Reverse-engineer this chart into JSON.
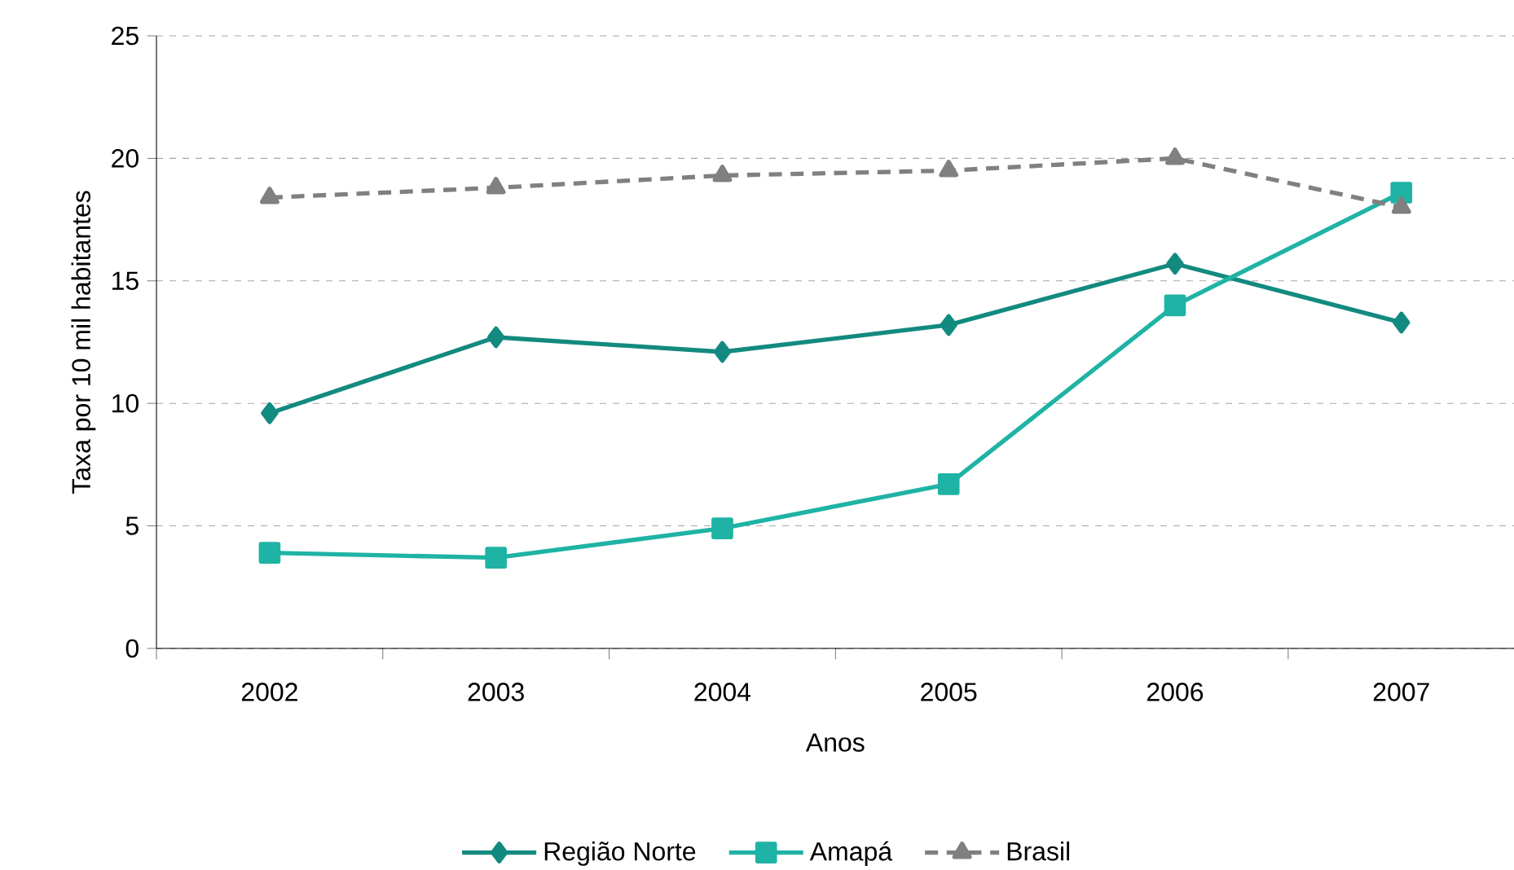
{
  "chart_data": {
    "type": "line",
    "xlabel": "Anos",
    "ylabel": "Taxa por 10 mil habitantes",
    "categories": [
      "2002",
      "2003",
      "2004",
      "2005",
      "2006",
      "2007"
    ],
    "series": [
      {
        "name": "Região Norte",
        "color": "#138a80",
        "marker": "diamond",
        "line_style": "solid",
        "values": [
          9.6,
          12.7,
          12.1,
          13.2,
          15.7,
          13.3
        ]
      },
      {
        "name": "Amapá",
        "color": "#1fb3a5",
        "marker": "square",
        "line_style": "solid",
        "values": [
          3.9,
          3.7,
          4.9,
          6.7,
          14.0,
          18.6
        ]
      },
      {
        "name": "Brasil",
        "color": "#808080",
        "marker": "triangle",
        "line_style": "dashed",
        "values": [
          18.4,
          18.8,
          19.3,
          19.5,
          20.0,
          18.0
        ]
      }
    ],
    "ylim": [
      0,
      25
    ],
    "yticks": [
      0,
      5,
      10,
      15,
      20,
      25
    ],
    "grid": "y",
    "legend": "bottom"
  }
}
